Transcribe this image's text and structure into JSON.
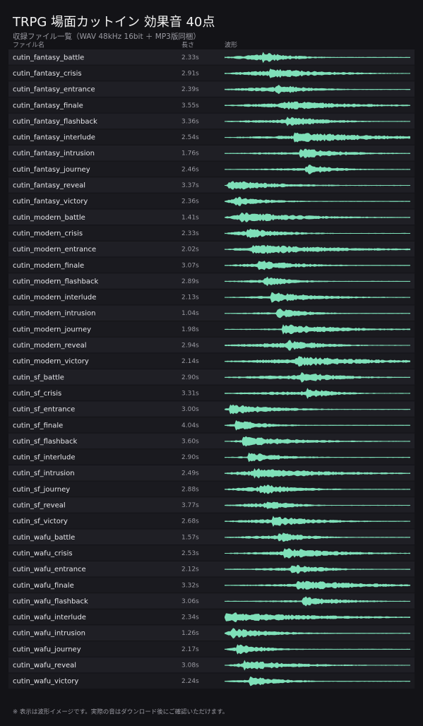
{
  "header": {
    "title": "TRPG 場面カットイン 効果音 40点",
    "subtitle": "収録ファイル一覧（WAV 48kHz 16bit ＋ MP3版同梱）"
  },
  "table": {
    "columns": [
      "ファイル名",
      "長さ",
      "波形"
    ],
    "rows": [
      [
        "cutin_fantasy_battle",
        "2.33s"
      ],
      [
        "cutin_fantasy_crisis",
        "2.91s"
      ],
      [
        "cutin_fantasy_entrance",
        "2.39s"
      ],
      [
        "cutin_fantasy_finale",
        "3.55s"
      ],
      [
        "cutin_fantasy_flashback",
        "3.36s"
      ],
      [
        "cutin_fantasy_interlude",
        "2.54s"
      ],
      [
        "cutin_fantasy_intrusion",
        "1.76s"
      ],
      [
        "cutin_fantasy_journey",
        "2.46s"
      ],
      [
        "cutin_fantasy_reveal",
        "3.37s"
      ],
      [
        "cutin_fantasy_victory",
        "2.36s"
      ],
      [
        "cutin_modern_battle",
        "1.41s"
      ],
      [
        "cutin_modern_crisis",
        "2.33s"
      ],
      [
        "cutin_modern_entrance",
        "2.02s"
      ],
      [
        "cutin_modern_finale",
        "3.07s"
      ],
      [
        "cutin_modern_flashback",
        "2.89s"
      ],
      [
        "cutin_modern_interlude",
        "2.13s"
      ],
      [
        "cutin_modern_intrusion",
        "1.04s"
      ],
      [
        "cutin_modern_journey",
        "1.98s"
      ],
      [
        "cutin_modern_reveal",
        "2.94s"
      ],
      [
        "cutin_modern_victory",
        "2.14s"
      ],
      [
        "cutin_sf_battle",
        "2.90s"
      ],
      [
        "cutin_sf_crisis",
        "3.31s"
      ],
      [
        "cutin_sf_entrance",
        "3.00s"
      ],
      [
        "cutin_sf_finale",
        "4.04s"
      ],
      [
        "cutin_sf_flashback",
        "3.60s"
      ],
      [
        "cutin_sf_interlude",
        "2.90s"
      ],
      [
        "cutin_sf_intrusion",
        "2.49s"
      ],
      [
        "cutin_sf_journey",
        "2.88s"
      ],
      [
        "cutin_sf_reveal",
        "3.77s"
      ],
      [
        "cutin_sf_victory",
        "2.68s"
      ],
      [
        "cutin_wafu_battle",
        "1.57s"
      ],
      [
        "cutin_wafu_crisis",
        "2.53s"
      ],
      [
        "cutin_wafu_entrance",
        "2.12s"
      ],
      [
        "cutin_wafu_finale",
        "3.32s"
      ],
      [
        "cutin_wafu_flashback",
        "3.06s"
      ],
      [
        "cutin_wafu_interlude",
        "2.34s"
      ],
      [
        "cutin_wafu_intrusion",
        "1.26s"
      ],
      [
        "cutin_wafu_journey",
        "2.17s"
      ],
      [
        "cutin_wafu_reveal",
        "3.08s"
      ],
      [
        "cutin_wafu_victory",
        "2.24s"
      ]
    ]
  },
  "footer": {
    "note": "※ 表示は波形イメージです。実際の音はダウンロード後にご確認いただけます。"
  }
}
